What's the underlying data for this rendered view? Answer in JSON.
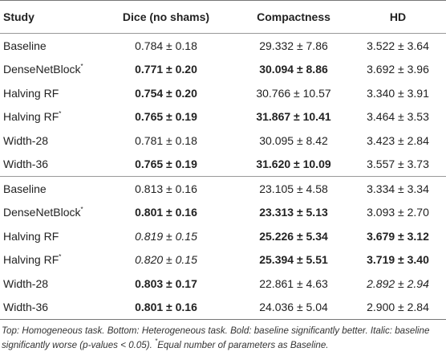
{
  "table": {
    "header": [
      "Study",
      "Dice (no shams)",
      "Compactness",
      "HD"
    ],
    "groups": [
      {
        "rows": [
          [
            {
              "text": "Baseline"
            },
            {
              "text": "0.784 ± 0.18"
            },
            {
              "text": "29.332 ± 7.86"
            },
            {
              "text": "3.522 ± 3.64"
            }
          ],
          [
            {
              "text": "DenseNetBlock",
              "sup": "*"
            },
            {
              "text": "0.771 ± 0.20",
              "style": "bold"
            },
            {
              "text": "30.094 ± 8.86",
              "style": "bold"
            },
            {
              "text": "3.692 ± 3.96"
            }
          ],
          [
            {
              "text": "Halving RF"
            },
            {
              "text": "0.754 ± 0.20",
              "style": "bold"
            },
            {
              "text": "30.766 ± 10.57"
            },
            {
              "text": "3.340 ± 3.91"
            }
          ],
          [
            {
              "text": "Halving RF",
              "sup": "*"
            },
            {
              "text": "0.765 ± 0.19",
              "style": "bold"
            },
            {
              "text": "31.867 ± 10.41",
              "style": "bold"
            },
            {
              "text": "3.464 ± 3.53"
            }
          ],
          [
            {
              "text": "Width-28"
            },
            {
              "text": "0.781 ± 0.18"
            },
            {
              "text": "30.095 ± 8.42"
            },
            {
              "text": "3.423 ± 2.84"
            }
          ],
          [
            {
              "text": "Width-36"
            },
            {
              "text": "0.765 ± 0.19",
              "style": "bold"
            },
            {
              "text": "31.620 ± 10.09",
              "style": "bold"
            },
            {
              "text": "3.557 ± 3.73"
            }
          ]
        ]
      },
      {
        "rows": [
          [
            {
              "text": "Baseline"
            },
            {
              "text": "0.813 ± 0.16"
            },
            {
              "text": "23.105 ± 4.58"
            },
            {
              "text": "3.334 ± 3.34"
            }
          ],
          [
            {
              "text": "DenseNetBlock",
              "sup": "*"
            },
            {
              "text": "0.801 ± 0.16",
              "style": "bold"
            },
            {
              "text": "23.313 ± 5.13",
              "style": "bold"
            },
            {
              "text": "3.093 ± 2.70"
            }
          ],
          [
            {
              "text": "Halving RF"
            },
            {
              "text": "0.819 ± 0.15",
              "style": "italic"
            },
            {
              "text": "25.226 ± 5.34",
              "style": "bold"
            },
            {
              "text": "3.679 ± 3.12",
              "style": "bold"
            }
          ],
          [
            {
              "text": "Halving RF",
              "sup": "*"
            },
            {
              "text": "0.820 ± 0.15",
              "style": "italic"
            },
            {
              "text": "25.394 ± 5.51",
              "style": "bold"
            },
            {
              "text": "3.719 ± 3.40",
              "style": "bold"
            }
          ],
          [
            {
              "text": "Width-28"
            },
            {
              "text": "0.803 ± 0.17",
              "style": "bold"
            },
            {
              "text": "22.861 ± 4.63"
            },
            {
              "text": "2.892 ± 2.94",
              "style": "italic"
            }
          ],
          [
            {
              "text": "Width-36"
            },
            {
              "text": "0.801 ± 0.16",
              "style": "bold"
            },
            {
              "text": "24.036 ± 5.04"
            },
            {
              "text": "2.900 ± 2.84"
            }
          ]
        ]
      }
    ]
  },
  "caption": {
    "text": "Top: Homogeneous task. Bottom: Heterogeneous task. Bold: baseline significantly better. Italic: baseline significantly worse (p-values < 0.05).",
    "sup": "*",
    "note": "Equal number of parameters as Baseline."
  }
}
